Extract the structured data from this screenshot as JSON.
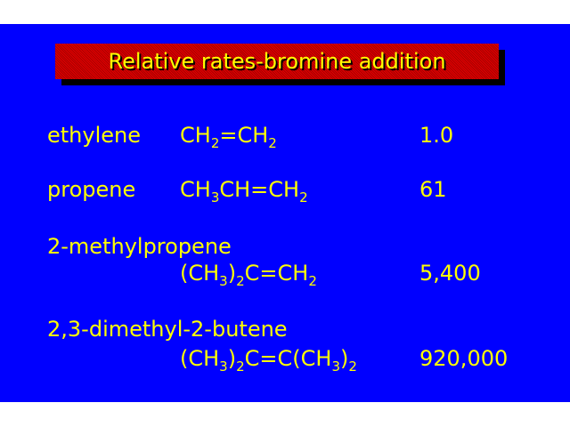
{
  "title": "Relative rates-bromine addition",
  "colors": {
    "background": "#0000ff",
    "text": "#ffff00",
    "title_box": "#e00000",
    "shadow": "#000000"
  },
  "rows": [
    {
      "name": "ethylene",
      "formula": [
        "CH",
        "2",
        "=CH",
        "2"
      ],
      "rate": "1.0"
    },
    {
      "name": "propene",
      "formula": [
        "CH",
        "3",
        "CH=CH",
        "2"
      ],
      "rate": "61"
    },
    {
      "name": "2-methylpropene",
      "formula": [
        "(CH",
        "3",
        ")",
        "2",
        "C=CH",
        "2"
      ],
      "rate": "5,400"
    },
    {
      "name": "2,3-dimethyl-2-butene",
      "formula": [
        "(CH",
        "3",
        ")",
        "2",
        "C=C(CH",
        "3",
        ")",
        "2"
      ],
      "rate": "920,000"
    }
  ]
}
